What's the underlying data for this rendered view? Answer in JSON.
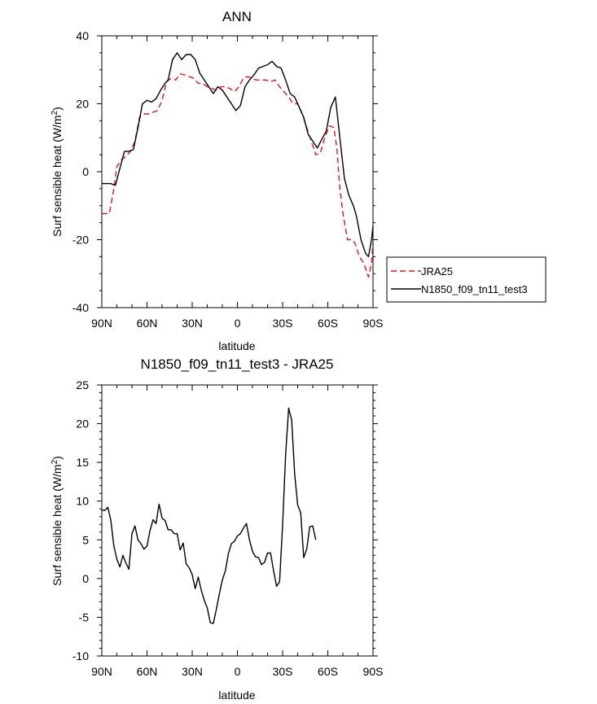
{
  "chart_data": [
    {
      "type": "line",
      "title": "ANN",
      "xlabel": "latitude",
      "ylabel": "Surf sensible heat (W/m",
      "ylabel_sup": "2",
      "ylabel_tail": ")",
      "xlim": [
        90,
        -90
      ],
      "ylim": [
        -40,
        40
      ],
      "x_ticks": [
        {
          "value": 90,
          "label": "90N"
        },
        {
          "value": 60,
          "label": "60N"
        },
        {
          "value": 30,
          "label": "30N"
        },
        {
          "value": 0,
          "label": "0"
        },
        {
          "value": -30,
          "label": "30S"
        },
        {
          "value": -60,
          "label": "60S"
        },
        {
          "value": -90,
          "label": "90S"
        }
      ],
      "y_ticks": [
        {
          "value": 40,
          "label": "40"
        },
        {
          "value": 20,
          "label": "20"
        },
        {
          "value": 0,
          "label": "0"
        },
        {
          "value": -20,
          "label": "-20"
        },
        {
          "value": -40,
          "label": "-40"
        }
      ],
      "legend_position": "right",
      "series": [
        {
          "name": "JRA25",
          "color": "#e8141b",
          "dash": "dashed",
          "points": [
            [
              90,
              -12.3
            ],
            [
              85,
              -12.3
            ],
            [
              82,
              -5
            ],
            [
              80,
              1.5
            ],
            [
              77,
              3.5
            ],
            [
              74,
              4.5
            ],
            [
              71,
              6
            ],
            [
              68,
              9
            ],
            [
              65,
              16
            ],
            [
              62,
              17
            ],
            [
              59,
              17
            ],
            [
              56,
              17.5
            ],
            [
              53,
              18
            ],
            [
              50,
              21
            ],
            [
              47,
              26.5
            ],
            [
              44,
              27.5
            ],
            [
              41,
              27
            ],
            [
              38,
              28.8
            ],
            [
              35,
              28.5
            ],
            [
              32,
              28
            ],
            [
              29,
              27.5
            ],
            [
              26,
              26
            ],
            [
              23,
              26
            ],
            [
              20,
              25
            ],
            [
              17,
              24.5
            ],
            [
              14,
              24
            ],
            [
              11,
              25
            ],
            [
              8,
              25
            ],
            [
              5,
              24.5
            ],
            [
              2,
              23.5
            ],
            [
              -1,
              25
            ],
            [
              -4,
              27.5
            ],
            [
              -7,
              28
            ],
            [
              -10,
              27.3
            ],
            [
              -13,
              27
            ],
            [
              -16,
              27
            ],
            [
              -19,
              27
            ],
            [
              -22,
              26.5
            ],
            [
              -25,
              27
            ],
            [
              -28,
              25
            ],
            [
              -31,
              23.5
            ],
            [
              -34,
              22
            ],
            [
              -37,
              20
            ],
            [
              -40,
              20
            ],
            [
              -43,
              17
            ],
            [
              -46,
              13
            ],
            [
              -49,
              9
            ],
            [
              -52,
              5
            ],
            [
              -55,
              5.5
            ],
            [
              -58,
              10
            ],
            [
              -61,
              13.5
            ],
            [
              -64,
              13
            ],
            [
              -66,
              7
            ],
            [
              -68,
              -5
            ],
            [
              -70,
              -12
            ],
            [
              -73,
              -20
            ],
            [
              -76,
              -20
            ],
            [
              -78,
              -21
            ],
            [
              -81,
              -25
            ],
            [
              -84,
              -27
            ],
            [
              -87,
              -31
            ],
            [
              -89,
              -27
            ],
            [
              -90,
              -21
            ]
          ]
        },
        {
          "name": "N1850_f09_tn11_test3",
          "color": "#000000",
          "dash": "solid",
          "points": [
            [
              90,
              -3.5
            ],
            [
              87,
              -3.5
            ],
            [
              84,
              -3.5
            ],
            [
              81,
              -4
            ],
            [
              78,
              1
            ],
            [
              75,
              6
            ],
            [
              72,
              6
            ],
            [
              69,
              6.5
            ],
            [
              66,
              13
            ],
            [
              63,
              20
            ],
            [
              60,
              21
            ],
            [
              57,
              20.5
            ],
            [
              54,
              21.5
            ],
            [
              51,
              24
            ],
            [
              48,
              26
            ],
            [
              46,
              27
            ],
            [
              43,
              33
            ],
            [
              40,
              35
            ],
            [
              37,
              33
            ],
            [
              34,
              34.5
            ],
            [
              31,
              34.5
            ],
            [
              28,
              33
            ],
            [
              25,
              29
            ],
            [
              22,
              27
            ],
            [
              19,
              25
            ],
            [
              16,
              23
            ],
            [
              13,
              25
            ],
            [
              10,
              24
            ],
            [
              7,
              22
            ],
            [
              4,
              20
            ],
            [
              1,
              18
            ],
            [
              -2,
              19.5
            ],
            [
              -5,
              25
            ],
            [
              -8,
              27
            ],
            [
              -11,
              28.5
            ],
            [
              -14,
              30.5
            ],
            [
              -17,
              31
            ],
            [
              -20,
              31.5
            ],
            [
              -23,
              32.5
            ],
            [
              -26,
              31
            ],
            [
              -29,
              30.5
            ],
            [
              -32,
              27
            ],
            [
              -35,
              23
            ],
            [
              -38,
              22
            ],
            [
              -41,
              19
            ],
            [
              -44,
              16
            ],
            [
              -47,
              11
            ],
            [
              -50,
              9
            ],
            [
              -53,
              7
            ],
            [
              -56,
              9.5
            ],
            [
              -59,
              12
            ],
            [
              -62,
              19
            ],
            [
              -65,
              22
            ],
            [
              -68,
              10
            ],
            [
              -71,
              -2
            ],
            [
              -74,
              -7
            ],
            [
              -77,
              -10
            ],
            [
              -79,
              -13
            ],
            [
              -82,
              -20
            ],
            [
              -85,
              -24
            ],
            [
              -87,
              -25
            ],
            [
              -89,
              -20
            ],
            [
              -90,
              -16
            ]
          ]
        }
      ]
    },
    {
      "type": "line",
      "title": "N1850_f09_tn11_test3 - JRA25",
      "xlabel": "latitude",
      "ylabel": "Surf sensible heat (W/m",
      "ylabel_sup": "2",
      "ylabel_tail": ")",
      "xlim": [
        90,
        -90
      ],
      "ylim": [
        -10,
        25
      ],
      "x_ticks": [
        {
          "value": 90,
          "label": "90N"
        },
        {
          "value": 60,
          "label": "60N"
        },
        {
          "value": 30,
          "label": "30N"
        },
        {
          "value": 0,
          "label": "0"
        },
        {
          "value": -30,
          "label": "30S"
        },
        {
          "value": -60,
          "label": "60S"
        },
        {
          "value": -90,
          "label": "90S"
        }
      ],
      "y_ticks": [
        {
          "value": 25,
          "label": "25"
        },
        {
          "value": 20,
          "label": "20"
        },
        {
          "value": 15,
          "label": "15"
        },
        {
          "value": 10,
          "label": "10"
        },
        {
          "value": 5,
          "label": "5"
        },
        {
          "value": 0,
          "label": "0"
        },
        {
          "value": -5,
          "label": "-5"
        },
        {
          "value": -10,
          "label": "-10"
        }
      ],
      "series": [
        {
          "color": "#000000",
          "dash": "solid",
          "points": [
            [
              90,
              8.8
            ],
            [
              88,
              8.8
            ],
            [
              86,
              9.2
            ],
            [
              84,
              7.5
            ],
            [
              82,
              4.2
            ],
            [
              80,
              2.5
            ],
            [
              78,
              1.5
            ],
            [
              76,
              3
            ],
            [
              74,
              2
            ],
            [
              72,
              1.2
            ],
            [
              70,
              5.8
            ],
            [
              68,
              6.8
            ],
            [
              66,
              5
            ],
            [
              64,
              4.5
            ],
            [
              62,
              3.8
            ],
            [
              60,
              4.2
            ],
            [
              58,
              6.2
            ],
            [
              56,
              7.6
            ],
            [
              54,
              7.1
            ],
            [
              52,
              9.6
            ],
            [
              50,
              7.8
            ],
            [
              48,
              7.5
            ],
            [
              46,
              6.3
            ],
            [
              44,
              6.3
            ],
            [
              42,
              5.8
            ],
            [
              40,
              5.8
            ],
            [
              38,
              3.7
            ],
            [
              36,
              4.6
            ],
            [
              34,
              1.9
            ],
            [
              32,
              1.4
            ],
            [
              30,
              0.5
            ],
            [
              28,
              -1.3
            ],
            [
              26,
              0.2
            ],
            [
              24,
              -1.5
            ],
            [
              22,
              -2.8
            ],
            [
              20,
              -3.8
            ],
            [
              18,
              -5.7
            ],
            [
              16,
              -5.8
            ],
            [
              14,
              -4
            ],
            [
              12,
              -2
            ],
            [
              10,
              -0.2
            ],
            [
              8,
              1
            ],
            [
              6,
              3.2
            ],
            [
              4,
              4.5
            ],
            [
              2,
              4.8
            ],
            [
              0,
              5.5
            ],
            [
              -2,
              5.8
            ],
            [
              -4,
              6.5
            ],
            [
              -6,
              7.1
            ],
            [
              -8,
              5
            ],
            [
              -10,
              3.5
            ],
            [
              -12,
              2.8
            ],
            [
              -14,
              2.7
            ],
            [
              -16,
              1.8
            ],
            [
              -18,
              2.1
            ],
            [
              -20,
              3.3
            ],
            [
              -22,
              3.3
            ],
            [
              -24,
              1
            ],
            [
              -26,
              -1
            ],
            [
              -28,
              -0.4
            ],
            [
              -30,
              7
            ],
            [
              -32,
              16
            ],
            [
              -34,
              22
            ],
            [
              -36,
              20.5
            ],
            [
              -38,
              13.5
            ],
            [
              -40,
              9.5
            ],
            [
              -42,
              8.5
            ],
            [
              -44,
              2.7
            ],
            [
              -46,
              3.8
            ],
            [
              -48,
              6.7
            ],
            [
              -50,
              6.8
            ],
            [
              -52,
              5
            ]
          ]
        }
      ]
    }
  ]
}
